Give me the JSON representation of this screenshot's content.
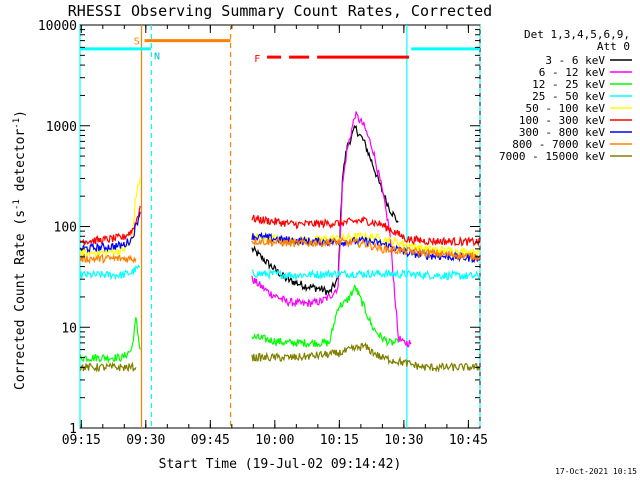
{
  "chart_data": {
    "type": "line",
    "title": "RHESSI Observing Summary Count Rates, Corrected",
    "xlabel": "Start Time (19-Jul-02 09:14:42)",
    "ylabel": "Corrected Count Rate (s⁻¹ detector⁻¹)",
    "ylabel_main": "Corrected Count Rate (s",
    "ylabel_sup1": "-1",
    "ylabel_mid": " detector",
    "ylabel_sup2": "-1",
    "ylabel_end": ")",
    "yscale": "log",
    "ylim": [
      1,
      10000
    ],
    "xlim_minutes": [
      0,
      93
    ],
    "x_ticks": [
      {
        "label": "09:15",
        "min": 0.3
      },
      {
        "label": "09:30",
        "min": 15.3
      },
      {
        "label": "09:45",
        "min": 30.3
      },
      {
        "label": "10:00",
        "min": 45.3
      },
      {
        "label": "10:15",
        "min": 60.3
      },
      {
        "label": "10:30",
        "min": 75.3
      },
      {
        "label": "10:45",
        "min": 90.3
      }
    ],
    "y_ticks": [
      {
        "label": "1",
        "value": 1
      },
      {
        "label": "10",
        "value": 10
      },
      {
        "label": "100",
        "value": 100
      },
      {
        "label": "1000",
        "value": 1000
      },
      {
        "label": "10000",
        "value": 10000
      }
    ],
    "legend_title": [
      "Det 1,3,4,5,6,9,",
      "Att 0"
    ],
    "series": [
      {
        "name": "3 - 6 keV",
        "color": "#000000",
        "x": [
          0,
          10,
          14,
          16,
          38,
          40,
          44,
          48,
          52,
          56,
          58,
          60,
          61,
          62,
          64,
          66,
          68,
          70,
          72,
          74,
          76
        ],
        "values": [
          null,
          null,
          null,
          null,
          null,
          60,
          42,
          30,
          26,
          24,
          22,
          30,
          300,
          600,
          950,
          700,
          420,
          240,
          150,
          110,
          null
        ]
      },
      {
        "name": "6 - 12 keV",
        "color": "#ff00ff",
        "x": [
          38,
          40,
          44,
          48,
          52,
          56,
          58,
          60,
          61,
          62,
          64,
          66,
          68,
          70,
          72,
          74,
          75,
          77
        ],
        "values": [
          null,
          30,
          22,
          18,
          17,
          18,
          20,
          25,
          250,
          550,
          1300,
          1000,
          600,
          260,
          90,
          8,
          7,
          7
        ]
      },
      {
        "name": "12 - 25 keV",
        "color": "#00ff00",
        "x": [
          0,
          5,
          10,
          12,
          13,
          14,
          38,
          40,
          48,
          56,
          58,
          60,
          62,
          64,
          66,
          68,
          70,
          72,
          74,
          76
        ],
        "values": [
          5,
          5,
          5,
          6,
          12,
          6,
          null,
          8,
          7,
          7,
          7,
          16,
          18,
          25,
          16,
          10,
          8,
          7,
          7,
          null
        ]
      },
      {
        "name": "25 - 50 keV",
        "color": "#00ffff",
        "x": [
          0,
          5,
          10,
          12,
          14,
          38,
          40,
          50,
          60,
          70,
          80,
          93
        ],
        "values": [
          33,
          33,
          33,
          35,
          40,
          null,
          34,
          33,
          34,
          34,
          33,
          32
        ]
      },
      {
        "name": "50 - 100 keV",
        "color": "#ffff00",
        "x": [
          0,
          5,
          10,
          12,
          13,
          14,
          38,
          40,
          50,
          60,
          66,
          70,
          80,
          93
        ],
        "values": [
          55,
          55,
          58,
          70,
          200,
          300,
          null,
          80,
          72,
          76,
          80,
          76,
          60,
          55
        ]
      },
      {
        "name": "100 - 300 keV",
        "color": "#ff0000",
        "x": [
          0,
          5,
          10,
          12,
          13,
          14,
          38,
          40,
          50,
          60,
          66,
          70,
          76,
          80,
          93
        ],
        "values": [
          72,
          73,
          78,
          90,
          110,
          160,
          null,
          120,
          105,
          108,
          115,
          105,
          75,
          72,
          70
        ]
      },
      {
        "name": "300 - 800 keV",
        "color": "#0000ff",
        "x": [
          0,
          5,
          10,
          12,
          13,
          14,
          38,
          40,
          50,
          60,
          66,
          70,
          76,
          80,
          93
        ],
        "values": [
          60,
          62,
          65,
          75,
          100,
          140,
          null,
          80,
          72,
          70,
          72,
          68,
          55,
          52,
          48
        ]
      },
      {
        "name": "800 - 7000 keV",
        "color": "#ff8000",
        "x": [
          0,
          10,
          13,
          38,
          40,
          50,
          60,
          66,
          70,
          80,
          93
        ],
        "values": [
          48,
          48,
          48,
          null,
          72,
          68,
          70,
          68,
          60,
          55,
          50
        ]
      },
      {
        "name": "7000 - 15000 keV",
        "color": "#808000",
        "x": [
          0,
          10,
          13,
          38,
          40,
          50,
          60,
          66,
          70,
          80,
          93
        ],
        "values": [
          4,
          4,
          4,
          null,
          5,
          5,
          5.5,
          6.5,
          5,
          4,
          4
        ]
      }
    ],
    "annotations": {
      "orange_bar_label": "S",
      "cyan_bar_label": "N",
      "flare_label": "F",
      "corner_date": "17-Oct-2021 10:15"
    },
    "state_bars": [
      {
        "label": "S",
        "color": "#ff8000",
        "start_min": 15.0,
        "end_min": 35.0,
        "value": 7000
      },
      {
        "label": "N",
        "color": "#00ffff",
        "start_min": 0,
        "end_min": 16.5,
        "value": 5800
      },
      {
        "label": "N",
        "color": "#00ffff",
        "start_min": 77.0,
        "end_min": 93.0,
        "value": 5800
      },
      {
        "label": "F",
        "color": "#ff0000",
        "start_min": 43.5,
        "end_min": 76.5,
        "value": 4800
      }
    ],
    "markers": [
      {
        "min": 14.3,
        "color": "#ff8000",
        "style": "solid"
      },
      {
        "min": 16.6,
        "color": "#00ffff",
        "style": "dashed"
      },
      {
        "min": 35.0,
        "color": "#ff8000",
        "style": "dashed"
      },
      {
        "min": 76.0,
        "color": "#00ffff",
        "style": "solid"
      },
      {
        "min": 93.0,
        "color": "#00ffff",
        "style": "dashed"
      },
      {
        "min": 0,
        "color": "#00ffff",
        "style": "solid"
      }
    ]
  }
}
